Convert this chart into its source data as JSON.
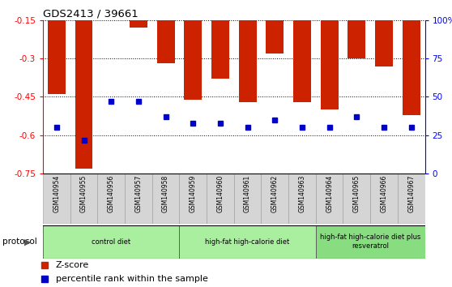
{
  "title": "GDS2413 / 39661",
  "samples": [
    "GSM140954",
    "GSM140955",
    "GSM140956",
    "GSM140957",
    "GSM140958",
    "GSM140959",
    "GSM140960",
    "GSM140961",
    "GSM140962",
    "GSM140963",
    "GSM140964",
    "GSM140965",
    "GSM140966",
    "GSM140967"
  ],
  "zscore": [
    -0.44,
    -0.73,
    -0.15,
    -0.18,
    -0.32,
    -0.46,
    -0.38,
    -0.47,
    -0.28,
    -0.47,
    -0.5,
    -0.3,
    -0.33,
    -0.52
  ],
  "percentile": [
    30,
    22,
    47,
    47,
    37,
    33,
    33,
    30,
    35,
    30,
    30,
    37,
    30,
    30
  ],
  "bar_color": "#cc2200",
  "dot_color": "#0000cc",
  "ymin": -0.75,
  "ymax": -0.15,
  "yticks_left": [
    -0.75,
    -0.6,
    -0.45,
    -0.3,
    -0.15
  ],
  "yticks_right": [
    0,
    25,
    50,
    75,
    100
  ],
  "groups": [
    {
      "label": "control diet",
      "start": 0,
      "end": 4,
      "color": "#99ee88"
    },
    {
      "label": "high-fat high-calorie diet",
      "start": 5,
      "end": 9,
      "color": "#99ee88"
    },
    {
      "label": "high-fat high-calorie diet plus\nresveratrol",
      "start": 10,
      "end": 13,
      "color": "#88dd77"
    }
  ],
  "protocol_label": "protocol",
  "legend_zscore": "Z-score",
  "legend_pct": "percentile rank within the sample"
}
